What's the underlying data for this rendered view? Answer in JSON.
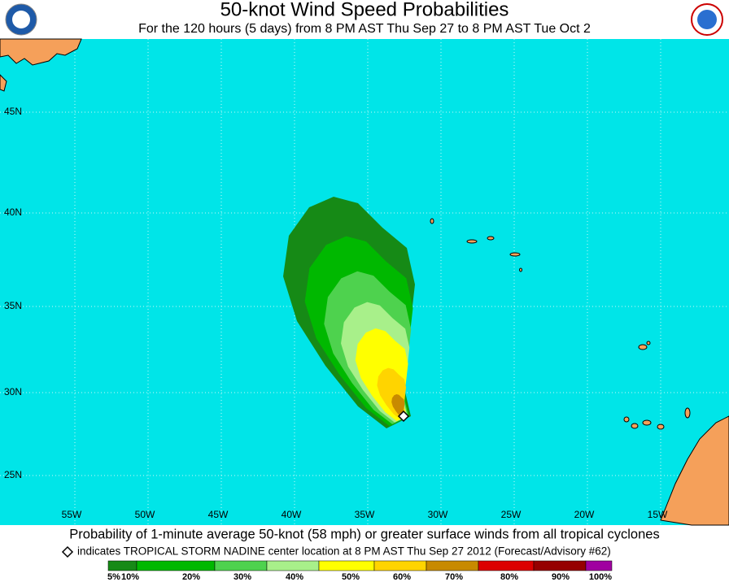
{
  "header": {
    "title": "50-knot Wind Speed Probabilities",
    "subtitle": "For the 120 hours (5 days) from 8 PM AST Thu Sep 27 to 8 PM AST Tue Oct 2"
  },
  "map": {
    "lat_labels": [
      "45N",
      "40N",
      "35N",
      "30N",
      "25N"
    ],
    "lon_labels": [
      "55W",
      "50W",
      "45W",
      "40W",
      "35W",
      "30W",
      "25W",
      "20W",
      "15W"
    ]
  },
  "caption": {
    "line1": "Probability of 1-minute average 50-knot (58 mph) or greater surface winds from all tropical cyclones",
    "line2": "indicates TROPICAL STORM NADINE center location at 8 PM AST Thu Sep 27 2012 (Forecast/Advisory #62)"
  },
  "legend": {
    "labels": [
      "5%",
      "10%",
      "20%",
      "30%",
      "40%",
      "50%",
      "60%",
      "70%",
      "80%",
      "90%",
      "100%"
    ],
    "colors": [
      "#168a16",
      "#00b800",
      "#4ed24e",
      "#a8f08a",
      "#ffff00",
      "#ffd400",
      "#c88a00",
      "#dc0000",
      "#960000",
      "#a000a0"
    ]
  }
}
